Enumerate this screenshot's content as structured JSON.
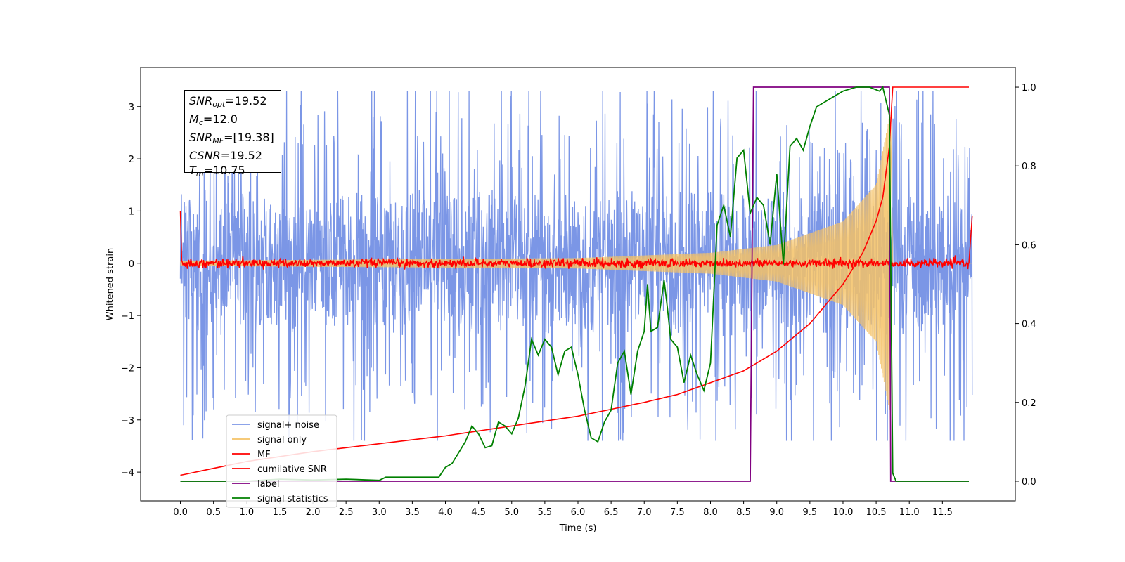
{
  "chart_data": {
    "type": "line",
    "xlabel": "Time (s)",
    "ylabel": "Whitened strain",
    "xlim": [
      -0.6,
      12.6
    ],
    "ylim": [
      -4.55,
      3.75
    ],
    "y2lim": [
      -0.05,
      1.05
    ],
    "x_ticks": [
      "0.0",
      "0.5",
      "1.0",
      "1.5",
      "2.0",
      "2.5",
      "3.0",
      "3.5",
      "4.0",
      "4.5",
      "5.0",
      "5.5",
      "6.0",
      "6.5",
      "7.0",
      "7.5",
      "8.0",
      "8.5",
      "9.0",
      "9.5",
      "10.0",
      "10.5",
      "11.0",
      "11.5"
    ],
    "y_ticks": [
      "3",
      "2",
      "1",
      "0",
      "−1",
      "−2",
      "−3",
      "−4"
    ],
    "y2_ticks": [
      "1.0",
      "0.8",
      "0.6",
      "0.4",
      "0.2",
      "0.0"
    ],
    "legend_placement": "lower-left",
    "annotation": {
      "snr_opt": {
        "label": "SNR",
        "sub": "opt",
        "value": "=19.52"
      },
      "mc": {
        "label": "M",
        "sub": "c",
        "value": "=12.0"
      },
      "snr_mf": {
        "label": "SNR",
        "sub": "MF",
        "value": "=[19.38]"
      },
      "csnr": {
        "label": "CSNR",
        "value": "=19.52"
      },
      "tm": {
        "label": "T",
        "sub": "m",
        "value": "=10.75"
      }
    },
    "series": [
      {
        "name": "signal+ noise",
        "color": "#7b96e6",
        "axis": "left",
        "description_values": "white noise band approx -2.2 to 2.2 with peaks near ±3"
      },
      {
        "name": "signal only",
        "color": "#f5c266",
        "axis": "left",
        "chirp_envelope": [
          [
            0,
            0.05
          ],
          [
            6,
            0.1
          ],
          [
            8,
            0.2
          ],
          [
            9,
            0.35
          ],
          [
            10,
            0.8
          ],
          [
            10.5,
            1.5
          ],
          [
            10.7,
            2.8
          ]
        ]
      },
      {
        "name": "MF",
        "color": "#ff0000",
        "axis": "left",
        "band": 0.1
      },
      {
        "name": "cumilative SNR",
        "color": "#ff0000",
        "axis": "right",
        "x": [
          0,
          1,
          2,
          3,
          4,
          5,
          6,
          7,
          7.5,
          8,
          8.5,
          9,
          9.5,
          10,
          10.3,
          10.5,
          10.6,
          10.7,
          10.75,
          11.9
        ],
        "y": [
          0.015,
          0.05,
          0.075,
          0.095,
          0.115,
          0.14,
          0.165,
          0.2,
          0.22,
          0.25,
          0.28,
          0.33,
          0.4,
          0.5,
          0.58,
          0.66,
          0.72,
          0.85,
          1.0,
          1.0
        ]
      },
      {
        "name": "label",
        "color": "#800080",
        "axis": "right",
        "x": [
          0,
          8.6,
          8.65,
          10.7,
          10.72,
          11.9
        ],
        "y": [
          0,
          0,
          1,
          1,
          0,
          0
        ]
      },
      {
        "name": "signal statistics",
        "color": "#008000",
        "axis": "right",
        "x": [
          0,
          0.5,
          1,
          1.5,
          2,
          2.5,
          3,
          3.1,
          3.5,
          3.9,
          4.0,
          4.1,
          4.3,
          4.4,
          4.5,
          4.6,
          4.7,
          4.8,
          4.9,
          5.0,
          5.1,
          5.2,
          5.3,
          5.4,
          5.5,
          5.6,
          5.7,
          5.8,
          5.9,
          6.0,
          6.1,
          6.2,
          6.3,
          6.4,
          6.5,
          6.6,
          6.7,
          6.8,
          6.9,
          7.0,
          7.05,
          7.1,
          7.2,
          7.3,
          7.35,
          7.4,
          7.5,
          7.6,
          7.7,
          7.8,
          7.9,
          8.0,
          8.1,
          8.2,
          8.3,
          8.4,
          8.5,
          8.6,
          8.7,
          8.8,
          8.9,
          9.0,
          9.1,
          9.2,
          9.3,
          9.4,
          9.5,
          9.6,
          9.7,
          9.8,
          9.9,
          10.0,
          10.2,
          10.4,
          10.55,
          10.6,
          10.7,
          10.75,
          10.8,
          11.9
        ],
        "y": [
          0,
          0,
          0,
          0.005,
          0.003,
          0.005,
          0.002,
          0.01,
          0.01,
          0.01,
          0.035,
          0.045,
          0.1,
          0.14,
          0.12,
          0.085,
          0.09,
          0.15,
          0.14,
          0.12,
          0.16,
          0.24,
          0.36,
          0.32,
          0.36,
          0.34,
          0.27,
          0.33,
          0.34,
          0.27,
          0.18,
          0.11,
          0.1,
          0.15,
          0.18,
          0.3,
          0.33,
          0.22,
          0.33,
          0.38,
          0.5,
          0.38,
          0.39,
          0.51,
          0.44,
          0.36,
          0.34,
          0.25,
          0.32,
          0.27,
          0.23,
          0.3,
          0.65,
          0.7,
          0.62,
          0.82,
          0.84,
          0.68,
          0.72,
          0.7,
          0.6,
          0.78,
          0.55,
          0.85,
          0.87,
          0.84,
          0.9,
          0.95,
          0.96,
          0.97,
          0.98,
          0.99,
          1.0,
          1.0,
          0.99,
          1.0,
          0.93,
          0.02,
          0.0,
          0.0
        ]
      }
    ]
  }
}
